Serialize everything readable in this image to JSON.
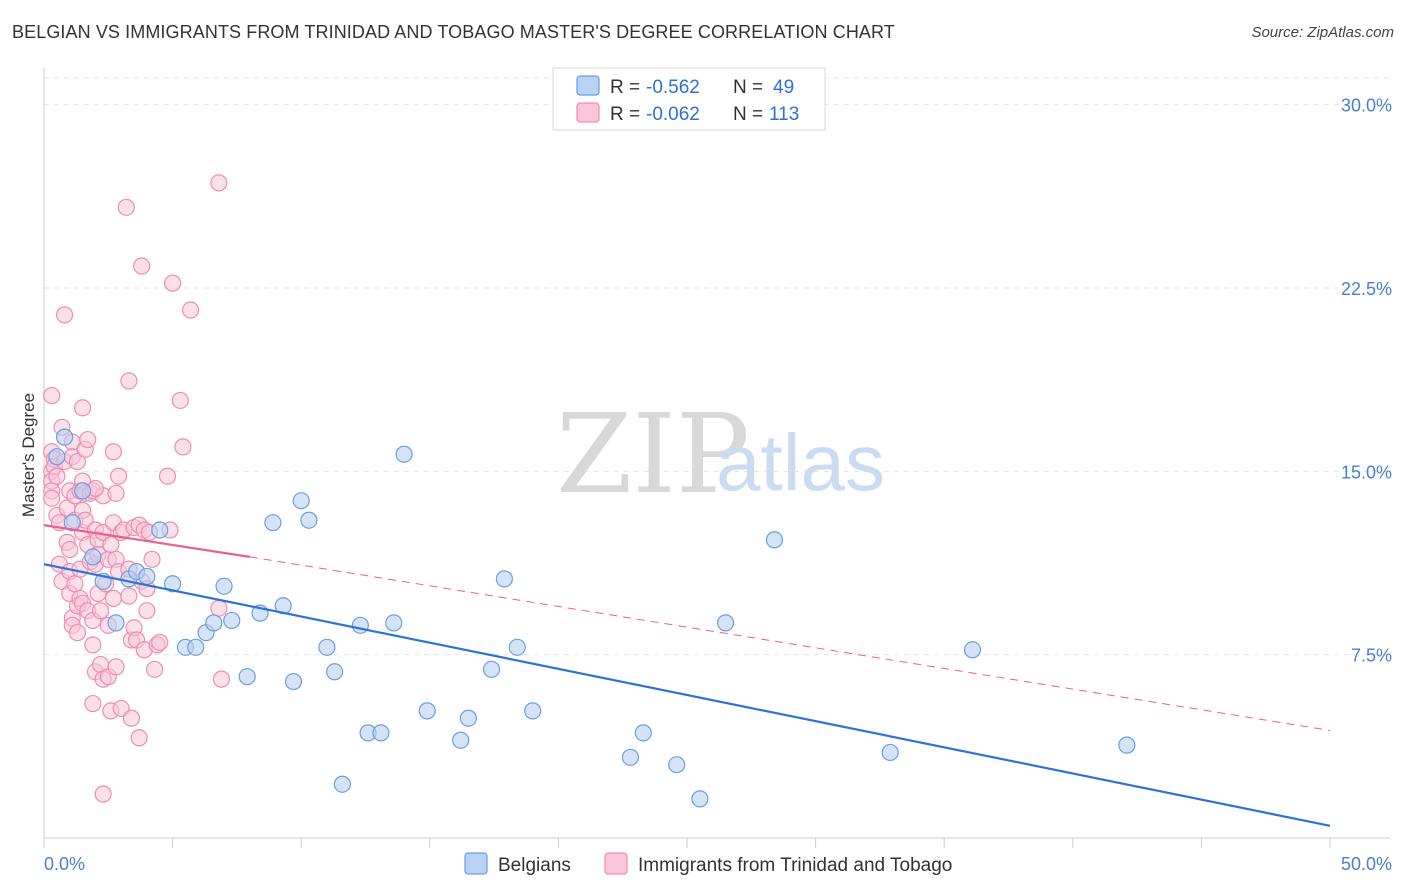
{
  "title": "BELGIAN VS IMMIGRANTS FROM TRINIDAD AND TOBAGO MASTER'S DEGREE CORRELATION CHART",
  "source": "Source: ZipAtlas.com",
  "watermark": {
    "zip": "ZIP",
    "atlas": "atlas"
  },
  "colors": {
    "belgians": "#6a9fe0",
    "belgians_fill": "#b9d1f2",
    "belgians_line": "#2f72d6",
    "trinidad": "#ef8db0",
    "trinidad_fill": "#f8c6d8",
    "trinidad_line": "#e8608c",
    "tick_text": "#4a7fd0",
    "grid": "#e4e4e4"
  },
  "legend": {
    "rows": [
      {
        "r_label": "R = ",
        "r_value": "-0.562",
        "n_label": "N = ",
        "n_value": "49"
      },
      {
        "r_label": "R = ",
        "r_value": "-0.062",
        "n_label": "N = ",
        "n_value": "113"
      }
    ]
  },
  "chart_data": {
    "type": "scatter",
    "title": "BELGIAN VS IMMIGRANTS FROM TRINIDAD AND TOBAGO MASTER'S DEGREE CORRELATION CHART",
    "xlabel": "",
    "ylabel": "Master's Degree",
    "xlim": [
      0,
      50
    ],
    "ylim": [
      0,
      31.5
    ],
    "x_tick_labels": [
      "0.0%",
      "50.0%"
    ],
    "y_ticks": [
      7.5,
      15.0,
      22.5,
      30.0
    ],
    "y_tick_labels": [
      "7.5%",
      "15.0%",
      "22.5%",
      "30.0%"
    ],
    "series": [
      {
        "name": "Belgians",
        "trend": {
          "x0": 0,
          "y0": 11.2,
          "x1": 50,
          "y1": 0.5,
          "style": "solid"
        },
        "points": [
          [
            0.5,
            15.6
          ],
          [
            0.8,
            16.4
          ],
          [
            1.5,
            14.2
          ],
          [
            1.1,
            12.9
          ],
          [
            1.9,
            11.5
          ],
          [
            2.3,
            10.5
          ],
          [
            2.8,
            8.8
          ],
          [
            3.3,
            10.6
          ],
          [
            3.6,
            10.9
          ],
          [
            4.0,
            10.7
          ],
          [
            4.5,
            12.6
          ],
          [
            5.0,
            10.4
          ],
          [
            5.5,
            7.8
          ],
          [
            5.9,
            7.8
          ],
          [
            6.3,
            8.4
          ],
          [
            6.6,
            8.8
          ],
          [
            7.0,
            10.3
          ],
          [
            7.3,
            8.9
          ],
          [
            7.9,
            6.6
          ],
          [
            8.4,
            9.2
          ],
          [
            8.9,
            12.9
          ],
          [
            9.3,
            9.5
          ],
          [
            9.7,
            6.4
          ],
          [
            10.0,
            13.8
          ],
          [
            10.3,
            13.0
          ],
          [
            11.0,
            7.8
          ],
          [
            11.3,
            6.8
          ],
          [
            11.6,
            2.2
          ],
          [
            12.3,
            8.7
          ],
          [
            12.6,
            4.3
          ],
          [
            13.1,
            4.3
          ],
          [
            13.6,
            8.8
          ],
          [
            14.0,
            15.7
          ],
          [
            14.9,
            5.2
          ],
          [
            16.2,
            4.0
          ],
          [
            16.5,
            4.9
          ],
          [
            17.4,
            6.9
          ],
          [
            17.9,
            10.6
          ],
          [
            18.4,
            7.8
          ],
          [
            19.0,
            5.2
          ],
          [
            22.8,
            3.3
          ],
          [
            23.3,
            4.3
          ],
          [
            24.6,
            3.0
          ],
          [
            25.5,
            1.6
          ],
          [
            26.5,
            8.8
          ],
          [
            28.4,
            12.2
          ],
          [
            32.9,
            3.5
          ],
          [
            36.1,
            7.7
          ],
          [
            42.1,
            3.8
          ]
        ]
      },
      {
        "name": "Immigrants from Trinidad and Tobago",
        "trend": {
          "x0": 0,
          "y0": 12.8,
          "x1": 8,
          "y1": 11.5,
          "x_dash_end": 50,
          "y_dash_end": 4.4,
          "style": "solid-then-dashed"
        },
        "points": [
          [
            0.3,
            15.8
          ],
          [
            0.3,
            15.0
          ],
          [
            0.3,
            14.6
          ],
          [
            0.3,
            14.2
          ],
          [
            0.3,
            13.9
          ],
          [
            0.3,
            18.1
          ],
          [
            0.4,
            15.5
          ],
          [
            0.4,
            15.2
          ],
          [
            0.5,
            14.8
          ],
          [
            0.5,
            13.2
          ],
          [
            0.6,
            12.9
          ],
          [
            0.6,
            11.2
          ],
          [
            0.7,
            16.8
          ],
          [
            0.7,
            10.5
          ],
          [
            0.8,
            15.4
          ],
          [
            0.8,
            21.4
          ],
          [
            0.9,
            13.5
          ],
          [
            0.9,
            12.1
          ],
          [
            1.0,
            14.2
          ],
          [
            1.0,
            11.8
          ],
          [
            1.0,
            10.9
          ],
          [
            1.0,
            10.0
          ],
          [
            1.1,
            9.0
          ],
          [
            1.1,
            16.2
          ],
          [
            1.1,
            15.6
          ],
          [
            1.1,
            8.7
          ],
          [
            1.2,
            14.0
          ],
          [
            1.2,
            13.0
          ],
          [
            1.2,
            10.4
          ],
          [
            1.3,
            15.4
          ],
          [
            1.3,
            9.5
          ],
          [
            1.3,
            8.4
          ],
          [
            1.4,
            14.2
          ],
          [
            1.4,
            11.0
          ],
          [
            1.4,
            9.8
          ],
          [
            1.5,
            17.6
          ],
          [
            1.5,
            14.6
          ],
          [
            1.5,
            13.4
          ],
          [
            1.5,
            12.5
          ],
          [
            1.5,
            9.6
          ],
          [
            1.6,
            15.9
          ],
          [
            1.6,
            14.1
          ],
          [
            1.6,
            13.0
          ],
          [
            1.7,
            16.3
          ],
          [
            1.7,
            12.0
          ],
          [
            1.7,
            9.3
          ],
          [
            1.8,
            14.1
          ],
          [
            1.8,
            11.3
          ],
          [
            1.9,
            14.2
          ],
          [
            1.9,
            8.9
          ],
          [
            1.9,
            7.9
          ],
          [
            1.9,
            5.5
          ],
          [
            2.0,
            12.6
          ],
          [
            2.0,
            11.2
          ],
          [
            2.0,
            6.8
          ],
          [
            2.1,
            12.2
          ],
          [
            2.1,
            11.6
          ],
          [
            2.1,
            10.0
          ],
          [
            2.2,
            9.3
          ],
          [
            2.2,
            7.1
          ],
          [
            2.3,
            14.0
          ],
          [
            2.3,
            12.5
          ],
          [
            2.3,
            6.5
          ],
          [
            2.4,
            10.4
          ],
          [
            2.5,
            11.4
          ],
          [
            2.5,
            8.7
          ],
          [
            2.5,
            6.6
          ],
          [
            2.6,
            12.0
          ],
          [
            2.6,
            5.2
          ],
          [
            2.7,
            15.8
          ],
          [
            2.7,
            12.9
          ],
          [
            2.7,
            9.8
          ],
          [
            2.8,
            14.1
          ],
          [
            2.8,
            11.4
          ],
          [
            2.8,
            7.0
          ],
          [
            2.9,
            14.8
          ],
          [
            2.9,
            10.9
          ],
          [
            3.0,
            12.5
          ],
          [
            3.0,
            5.3
          ],
          [
            3.1,
            12.6
          ],
          [
            3.2,
            25.8
          ],
          [
            3.3,
            18.7
          ],
          [
            3.3,
            11.0
          ],
          [
            3.3,
            9.9
          ],
          [
            3.4,
            8.1
          ],
          [
            3.4,
            4.9
          ],
          [
            3.5,
            12.7
          ],
          [
            3.5,
            8.6
          ],
          [
            3.6,
            8.1
          ],
          [
            3.7,
            12.8
          ],
          [
            3.7,
            4.1
          ],
          [
            3.8,
            10.5
          ],
          [
            3.9,
            12.6
          ],
          [
            3.9,
            7.7
          ],
          [
            4.0,
            10.2
          ],
          [
            4.0,
            9.3
          ],
          [
            4.1,
            12.5
          ],
          [
            4.2,
            11.4
          ],
          [
            4.3,
            6.9
          ],
          [
            4.4,
            7.9
          ],
          [
            4.5,
            8.0
          ],
          [
            4.8,
            14.8
          ],
          [
            4.9,
            12.6
          ],
          [
            5.0,
            22.7
          ],
          [
            5.3,
            17.9
          ],
          [
            5.4,
            16.0
          ],
          [
            5.7,
            21.6
          ],
          [
            6.8,
            26.8
          ],
          [
            6.8,
            9.4
          ],
          [
            6.9,
            6.5
          ],
          [
            2.3,
            1.8
          ],
          [
            3.8,
            23.4
          ],
          [
            2.0,
            14.3
          ]
        ]
      }
    ]
  },
  "bottom_legend": {
    "items": [
      "Belgians",
      "Immigrants from Trinidad and Tobago"
    ]
  }
}
